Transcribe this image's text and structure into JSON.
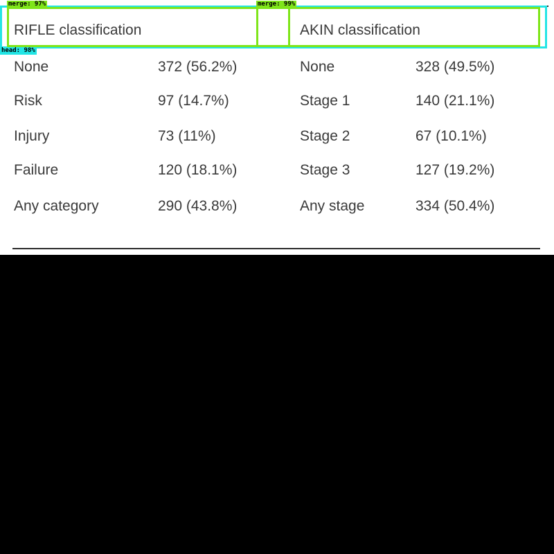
{
  "table": {
    "headers": {
      "rifle": "RIFLE classification",
      "akin": "AKIN classification"
    },
    "rows": [
      {
        "rifle_label": "None",
        "rifle_value": "372 (56.2%)",
        "akin_label": "None",
        "akin_value": "328 (49.5%)"
      },
      {
        "rifle_label": "Risk",
        "rifle_value": "97 (14.7%)",
        "akin_label": "Stage 1",
        "akin_value": "140 (21.1%)"
      },
      {
        "rifle_label": "Injury",
        "rifle_value": "73 (11%)",
        "akin_label": "Stage 2",
        "akin_value": "67 (10.1%)"
      },
      {
        "rifle_label": "Failure",
        "rifle_value": "120 (18.1%)",
        "akin_label": "Stage 3",
        "akin_value": "127 (19.2%)"
      },
      {
        "rifle_label": "Any category",
        "rifle_value": "290 (43.8%)",
        "akin_label": "Any stage",
        "akin_value": "334 (50.4%)"
      }
    ]
  },
  "annotations": {
    "merge_left": "merge: 97%",
    "merge_right": "merge: 99%",
    "head": "head: 98%"
  },
  "colors": {
    "head_box": "#22e5e5",
    "merge_box": "#7fe51a",
    "background_below": "#000000"
  }
}
